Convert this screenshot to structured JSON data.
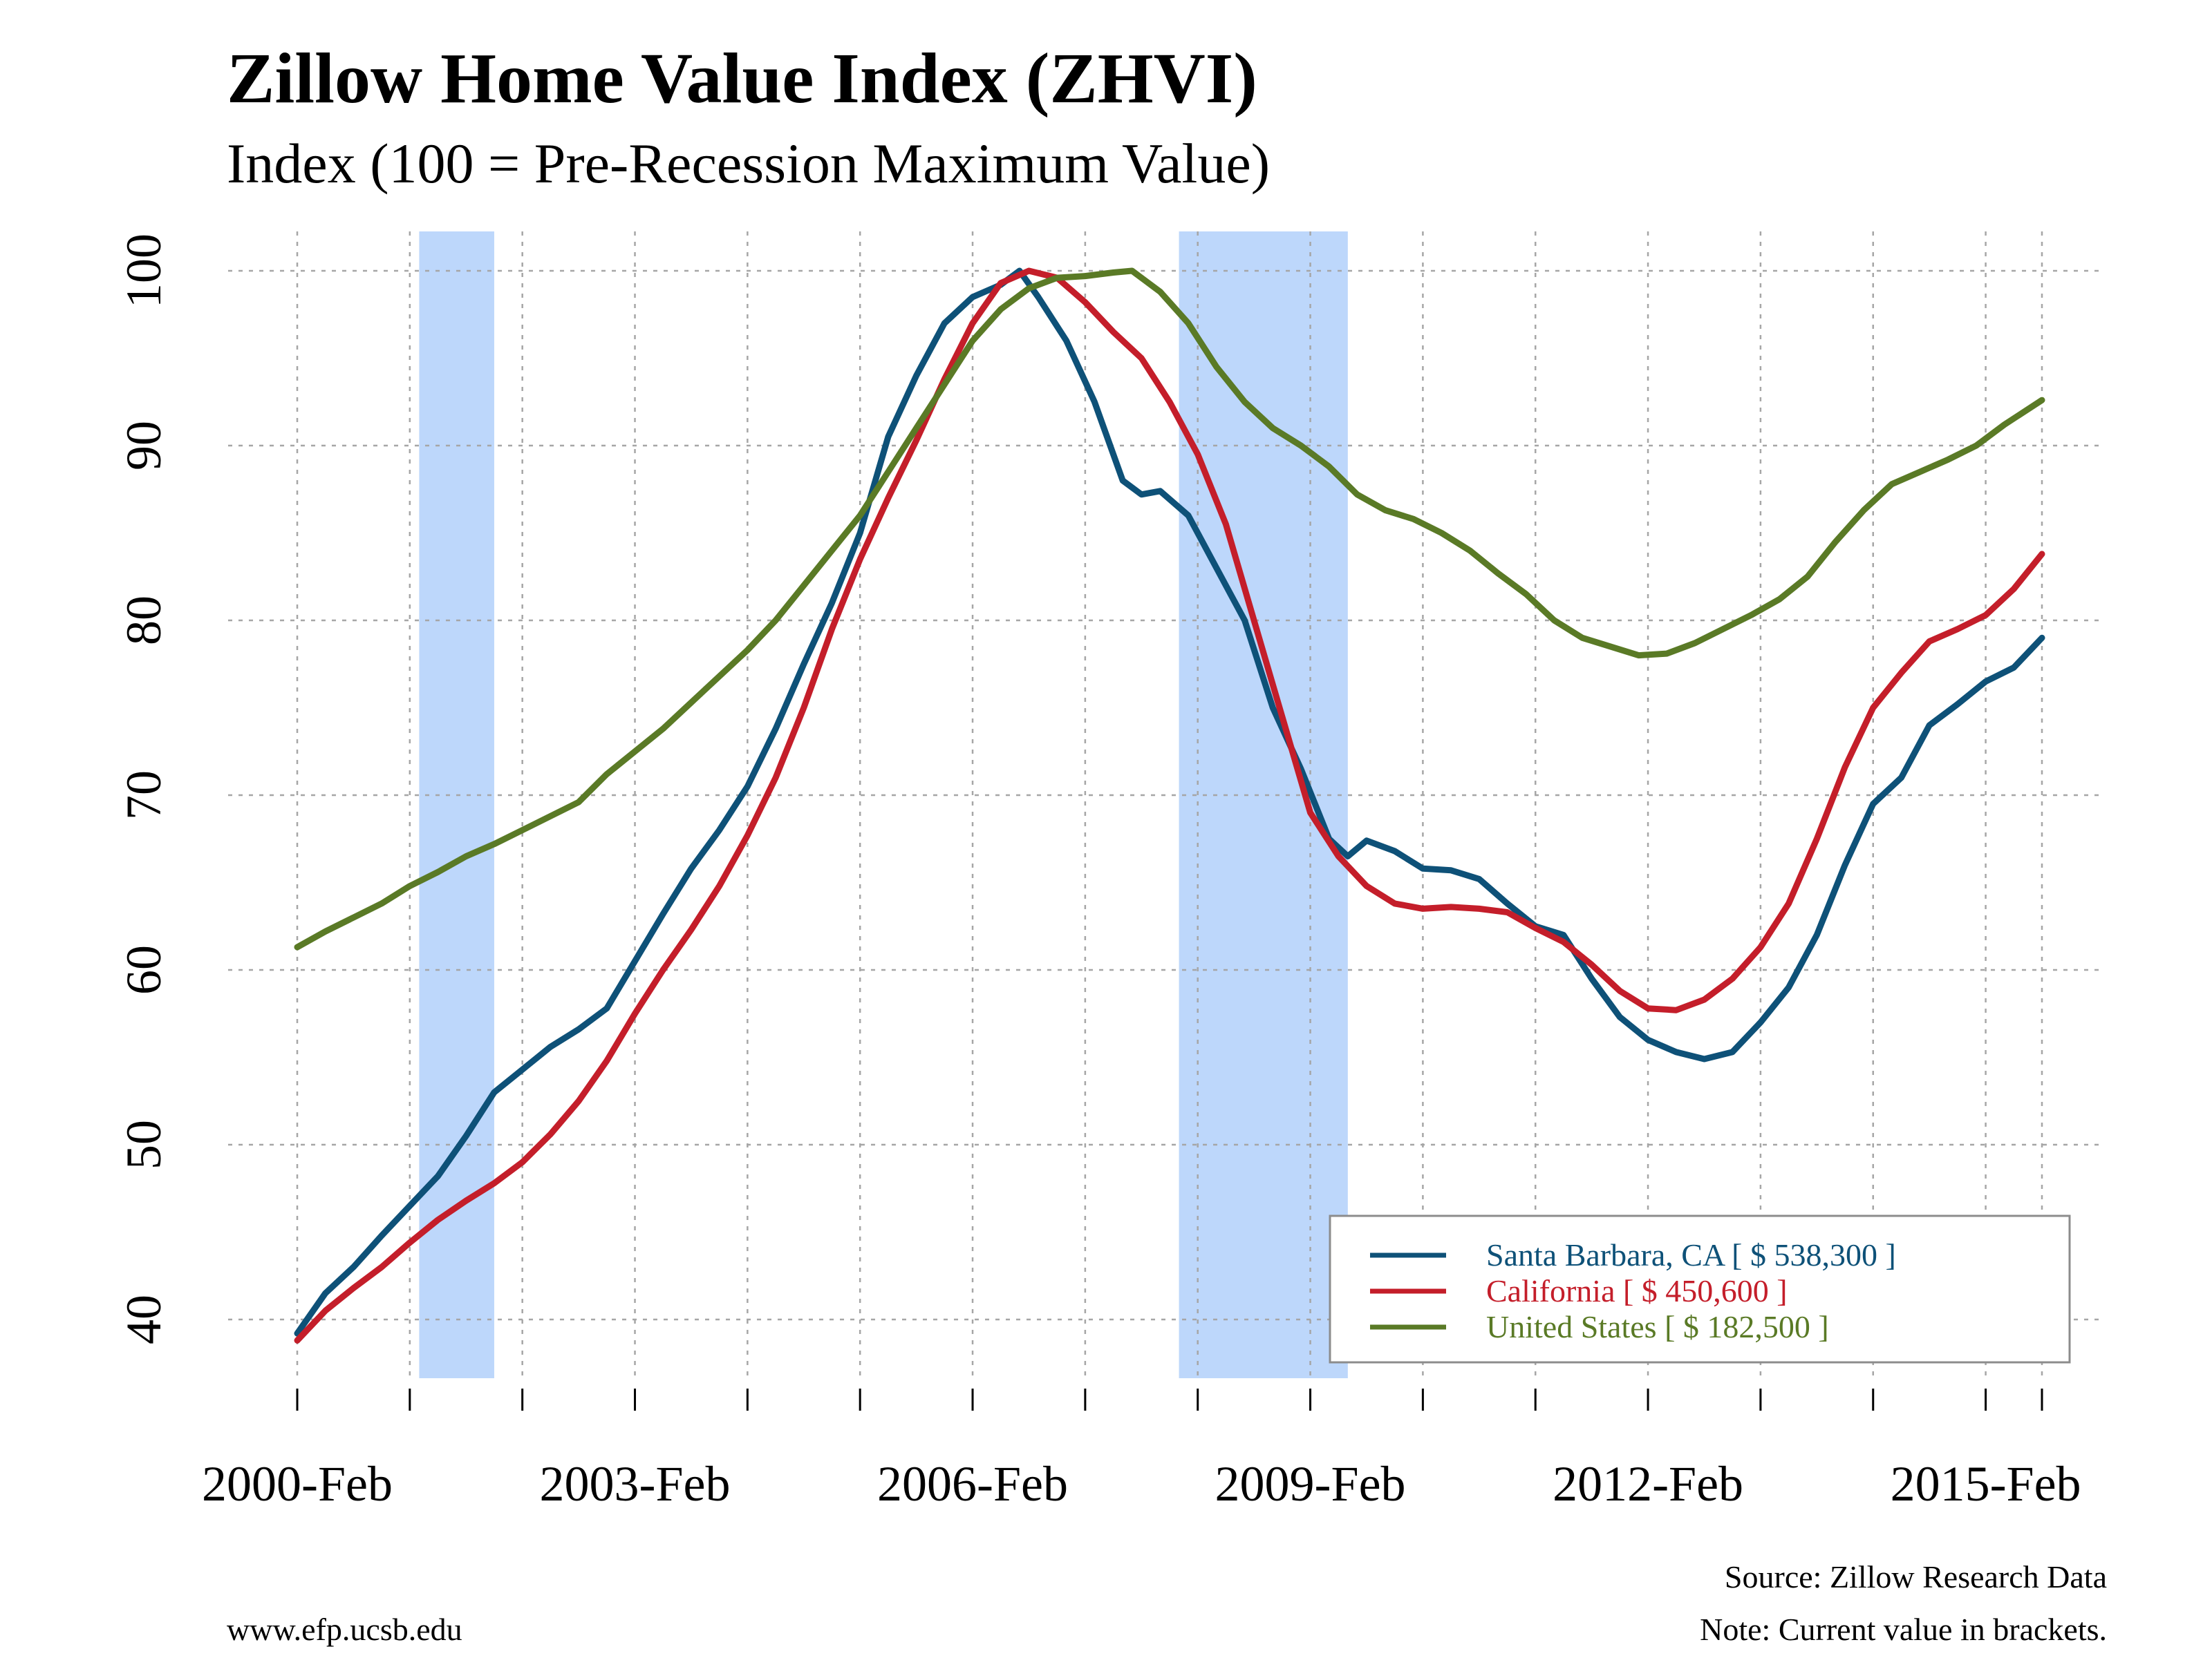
{
  "title": "Zillow Home Value Index (ZHVI)",
  "subtitle": "Index (100 = Pre-Recession Maximum Value)",
  "footer": {
    "source": "Source: Zillow Research Data",
    "note": "Note: Current value in brackets.",
    "website": "www.efp.ucsb.edu"
  },
  "colors": {
    "santa_barbara": "#0e5178",
    "california": "#c41e2a",
    "united_states": "#5a7a26",
    "recession": "#bdd7fb",
    "grid": "#a6a6a6"
  },
  "chart_data": {
    "type": "line",
    "x_unit": "date",
    "xlim": [
      "2000-02",
      "2015-08"
    ],
    "ylim": [
      36,
      102
    ],
    "grid": true,
    "legend_position": "bottom-right",
    "x_ticks": [
      "2000-02",
      "2001-02",
      "2002-02",
      "2003-02",
      "2004-02",
      "2005-02",
      "2006-02",
      "2007-02",
      "2008-02",
      "2009-02",
      "2010-02",
      "2011-02",
      "2012-02",
      "2013-02",
      "2014-02",
      "2015-02",
      "2015-08"
    ],
    "x_tick_labels": [
      {
        "date": "2000-02",
        "label": "2000-Feb"
      },
      {
        "date": "2003-02",
        "label": "2003-Feb"
      },
      {
        "date": "2006-02",
        "label": "2006-Feb"
      },
      {
        "date": "2009-02",
        "label": "2009-Feb"
      },
      {
        "date": "2012-02",
        "label": "2012-Feb"
      },
      {
        "date": "2015-02",
        "label": "2015-Feb"
      }
    ],
    "y_ticks": [
      40,
      50,
      60,
      70,
      80,
      90,
      100
    ],
    "recessions": [
      {
        "start": "2001-03",
        "end": "2001-11"
      },
      {
        "start": "2007-12",
        "end": "2009-06"
      }
    ],
    "series": [
      {
        "name": "Santa Barbara, CA [ $ 538,300 ]",
        "color_key": "santa_barbara",
        "points": [
          [
            "2000-02",
            39.2
          ],
          [
            "2000-05",
            41.5
          ],
          [
            "2000-08",
            43.0
          ],
          [
            "2000-11",
            44.8
          ],
          [
            "2001-02",
            46.5
          ],
          [
            "2001-05",
            48.2
          ],
          [
            "2001-08",
            50.5
          ],
          [
            "2001-11",
            53.0
          ],
          [
            "2002-02",
            54.3
          ],
          [
            "2002-05",
            55.6
          ],
          [
            "2002-08",
            56.6
          ],
          [
            "2002-11",
            57.8
          ],
          [
            "2003-02",
            60.5
          ],
          [
            "2003-05",
            63.2
          ],
          [
            "2003-08",
            65.8
          ],
          [
            "2003-11",
            68.0
          ],
          [
            "2004-02",
            70.5
          ],
          [
            "2004-05",
            73.8
          ],
          [
            "2004-08",
            77.5
          ],
          [
            "2004-11",
            81.0
          ],
          [
            "2005-02",
            85.0
          ],
          [
            "2005-05",
            90.5
          ],
          [
            "2005-08",
            94.0
          ],
          [
            "2005-11",
            97.0
          ],
          [
            "2006-02",
            98.5
          ],
          [
            "2006-05",
            99.2
          ],
          [
            "2006-07",
            100.0
          ],
          [
            "2006-09",
            98.5
          ],
          [
            "2006-12",
            96.0
          ],
          [
            "2007-03",
            92.5
          ],
          [
            "2007-06",
            88.0
          ],
          [
            "2007-08",
            87.2
          ],
          [
            "2007-10",
            87.4
          ],
          [
            "2008-01",
            86.0
          ],
          [
            "2008-04",
            83.0
          ],
          [
            "2008-07",
            80.0
          ],
          [
            "2008-10",
            75.0
          ],
          [
            "2009-01",
            71.5
          ],
          [
            "2009-04",
            67.5
          ],
          [
            "2009-06",
            66.5
          ],
          [
            "2009-08",
            67.4
          ],
          [
            "2009-11",
            66.8
          ],
          [
            "2010-02",
            65.8
          ],
          [
            "2010-05",
            65.7
          ],
          [
            "2010-08",
            65.2
          ],
          [
            "2010-11",
            63.8
          ],
          [
            "2011-02",
            62.5
          ],
          [
            "2011-05",
            62.0
          ],
          [
            "2011-08",
            59.5
          ],
          [
            "2011-11",
            57.3
          ],
          [
            "2012-02",
            56.0
          ],
          [
            "2012-05",
            55.3
          ],
          [
            "2012-08",
            54.9
          ],
          [
            "2012-11",
            55.3
          ],
          [
            "2013-02",
            57.0
          ],
          [
            "2013-05",
            59.0
          ],
          [
            "2013-08",
            62.0
          ],
          [
            "2013-11",
            66.0
          ],
          [
            "2014-02",
            69.5
          ],
          [
            "2014-05",
            71.0
          ],
          [
            "2014-08",
            74.0
          ],
          [
            "2014-11",
            75.2
          ],
          [
            "2015-02",
            76.5
          ],
          [
            "2015-05",
            77.3
          ],
          [
            "2015-08",
            79.0
          ]
        ]
      },
      {
        "name": "California [ $ 450,600 ]",
        "color_key": "california",
        "points": [
          [
            "2000-02",
            38.8
          ],
          [
            "2000-05",
            40.5
          ],
          [
            "2000-08",
            41.8
          ],
          [
            "2000-11",
            43.0
          ],
          [
            "2001-02",
            44.4
          ],
          [
            "2001-05",
            45.7
          ],
          [
            "2001-08",
            46.8
          ],
          [
            "2001-11",
            47.8
          ],
          [
            "2002-02",
            49.0
          ],
          [
            "2002-05",
            50.6
          ],
          [
            "2002-08",
            52.5
          ],
          [
            "2002-11",
            54.8
          ],
          [
            "2003-02",
            57.5
          ],
          [
            "2003-05",
            60.0
          ],
          [
            "2003-08",
            62.3
          ],
          [
            "2003-11",
            64.8
          ],
          [
            "2004-02",
            67.7
          ],
          [
            "2004-05",
            71.0
          ],
          [
            "2004-08",
            75.0
          ],
          [
            "2004-11",
            79.5
          ],
          [
            "2005-02",
            83.5
          ],
          [
            "2005-05",
            87.0
          ],
          [
            "2005-08",
            90.3
          ],
          [
            "2005-11",
            93.8
          ],
          [
            "2006-02",
            97.0
          ],
          [
            "2006-05",
            99.3
          ],
          [
            "2006-08",
            100.0
          ],
          [
            "2006-11",
            99.6
          ],
          [
            "2007-02",
            98.2
          ],
          [
            "2007-05",
            96.5
          ],
          [
            "2007-08",
            95.0
          ],
          [
            "2007-11",
            92.5
          ],
          [
            "2008-02",
            89.5
          ],
          [
            "2008-05",
            85.5
          ],
          [
            "2008-08",
            80.0
          ],
          [
            "2008-11",
            74.5
          ],
          [
            "2009-02",
            69.0
          ],
          [
            "2009-05",
            66.5
          ],
          [
            "2009-08",
            64.8
          ],
          [
            "2009-11",
            63.8
          ],
          [
            "2010-02",
            63.5
          ],
          [
            "2010-05",
            63.6
          ],
          [
            "2010-08",
            63.5
          ],
          [
            "2010-11",
            63.3
          ],
          [
            "2011-02",
            62.4
          ],
          [
            "2011-05",
            61.6
          ],
          [
            "2011-08",
            60.3
          ],
          [
            "2011-11",
            58.8
          ],
          [
            "2012-02",
            57.8
          ],
          [
            "2012-05",
            57.7
          ],
          [
            "2012-08",
            58.3
          ],
          [
            "2012-11",
            59.5
          ],
          [
            "2013-02",
            61.3
          ],
          [
            "2013-05",
            63.8
          ],
          [
            "2013-08",
            67.5
          ],
          [
            "2013-11",
            71.6
          ],
          [
            "2014-02",
            75.0
          ],
          [
            "2014-05",
            77.0
          ],
          [
            "2014-08",
            78.8
          ],
          [
            "2014-11",
            79.5
          ],
          [
            "2015-02",
            80.3
          ],
          [
            "2015-05",
            81.8
          ],
          [
            "2015-08",
            83.8
          ]
        ]
      },
      {
        "name": "United States [ $ 182,500 ]",
        "color_key": "united_states",
        "points": [
          [
            "2000-02",
            61.3
          ],
          [
            "2000-05",
            62.2
          ],
          [
            "2000-08",
            63.0
          ],
          [
            "2000-11",
            63.8
          ],
          [
            "2001-02",
            64.8
          ],
          [
            "2001-05",
            65.6
          ],
          [
            "2001-08",
            66.5
          ],
          [
            "2001-11",
            67.2
          ],
          [
            "2002-02",
            68.0
          ],
          [
            "2002-05",
            68.8
          ],
          [
            "2002-08",
            69.6
          ],
          [
            "2002-11",
            71.2
          ],
          [
            "2003-02",
            72.5
          ],
          [
            "2003-05",
            73.8
          ],
          [
            "2003-08",
            75.3
          ],
          [
            "2003-11",
            76.8
          ],
          [
            "2004-02",
            78.3
          ],
          [
            "2004-05",
            80.0
          ],
          [
            "2004-08",
            82.0
          ],
          [
            "2004-11",
            84.0
          ],
          [
            "2005-02",
            86.0
          ],
          [
            "2005-05",
            88.5
          ],
          [
            "2005-08",
            91.0
          ],
          [
            "2005-11",
            93.5
          ],
          [
            "2006-02",
            96.0
          ],
          [
            "2006-05",
            97.8
          ],
          [
            "2006-08",
            99.0
          ],
          [
            "2006-11",
            99.6
          ],
          [
            "2007-02",
            99.7
          ],
          [
            "2007-05",
            99.9
          ],
          [
            "2007-07",
            100.0
          ],
          [
            "2007-10",
            98.8
          ],
          [
            "2008-01",
            97.0
          ],
          [
            "2008-04",
            94.5
          ],
          [
            "2008-07",
            92.5
          ],
          [
            "2008-10",
            91.0
          ],
          [
            "2009-01",
            90.0
          ],
          [
            "2009-04",
            88.8
          ],
          [
            "2009-07",
            87.2
          ],
          [
            "2009-10",
            86.3
          ],
          [
            "2010-01",
            85.8
          ],
          [
            "2010-04",
            85.0
          ],
          [
            "2010-07",
            84.0
          ],
          [
            "2010-10",
            82.7
          ],
          [
            "2011-01",
            81.5
          ],
          [
            "2011-04",
            80.0
          ],
          [
            "2011-07",
            79.0
          ],
          [
            "2011-10",
            78.5
          ],
          [
            "2012-01",
            78.0
          ],
          [
            "2012-04",
            78.1
          ],
          [
            "2012-07",
            78.7
          ],
          [
            "2012-10",
            79.5
          ],
          [
            "2013-01",
            80.3
          ],
          [
            "2013-04",
            81.2
          ],
          [
            "2013-07",
            82.5
          ],
          [
            "2013-10",
            84.5
          ],
          [
            "2014-01",
            86.3
          ],
          [
            "2014-04",
            87.8
          ],
          [
            "2014-07",
            88.5
          ],
          [
            "2014-10",
            89.2
          ],
          [
            "2015-01",
            90.0
          ],
          [
            "2015-04",
            91.2
          ],
          [
            "2015-08",
            92.6
          ]
        ]
      }
    ]
  }
}
